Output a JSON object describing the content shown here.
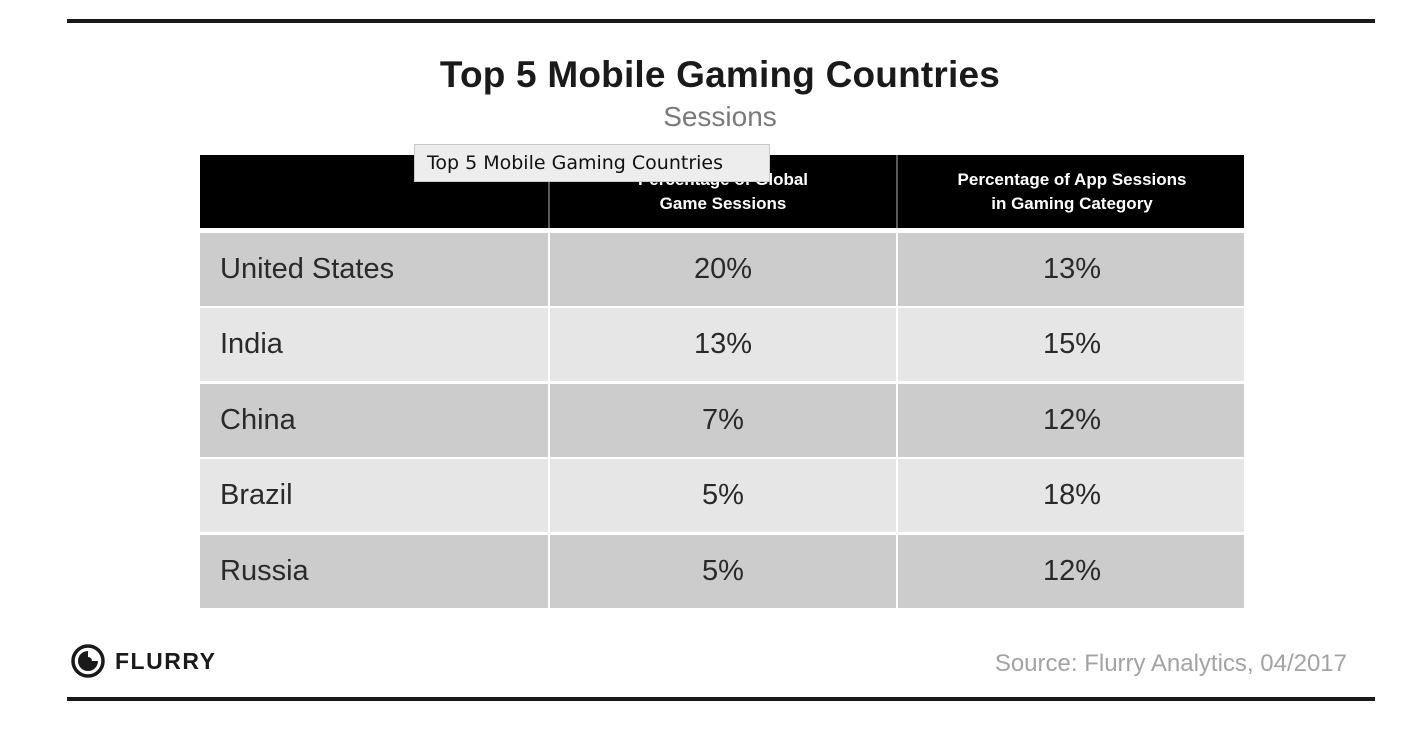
{
  "chart_data": {
    "type": "table",
    "title": "Top 5 Mobile Gaming Countries",
    "subtitle": "Sessions",
    "columns": [
      "",
      "Percentage of Global\nGame Sessions",
      "Percentage of App Sessions\nin Gaming Category"
    ],
    "rows": [
      [
        "United States",
        "20%",
        "13%"
      ],
      [
        "India",
        "13%",
        "15%"
      ],
      [
        "China",
        "7%",
        "12%"
      ],
      [
        "Brazil",
        "5%",
        "18%"
      ],
      [
        "Russia",
        "5%",
        "12%"
      ]
    ],
    "series": [
      {
        "name": "Percentage of Global Game Sessions",
        "values": [
          20,
          13,
          7,
          5,
          5
        ]
      },
      {
        "name": "Percentage of App Sessions in Gaming Category",
        "values": [
          13,
          15,
          12,
          18,
          12
        ]
      }
    ],
    "categories": [
      "United States",
      "India",
      "China",
      "Brazil",
      "Russia"
    ]
  },
  "tooltip": "Top 5 Mobile Gaming Countries",
  "footer": {
    "logo_text": "FLURRY",
    "logo_icon": "flurry-logo-icon",
    "source": "Source: Flurry Analytics, 04/2017"
  },
  "colors": {
    "header_bg": "#000000",
    "row_dark": "#cccccc",
    "row_light": "#e6e6e6",
    "title": "#1a1a1a",
    "subtitle": "#7a7a7a",
    "source": "#a3a3a3"
  }
}
